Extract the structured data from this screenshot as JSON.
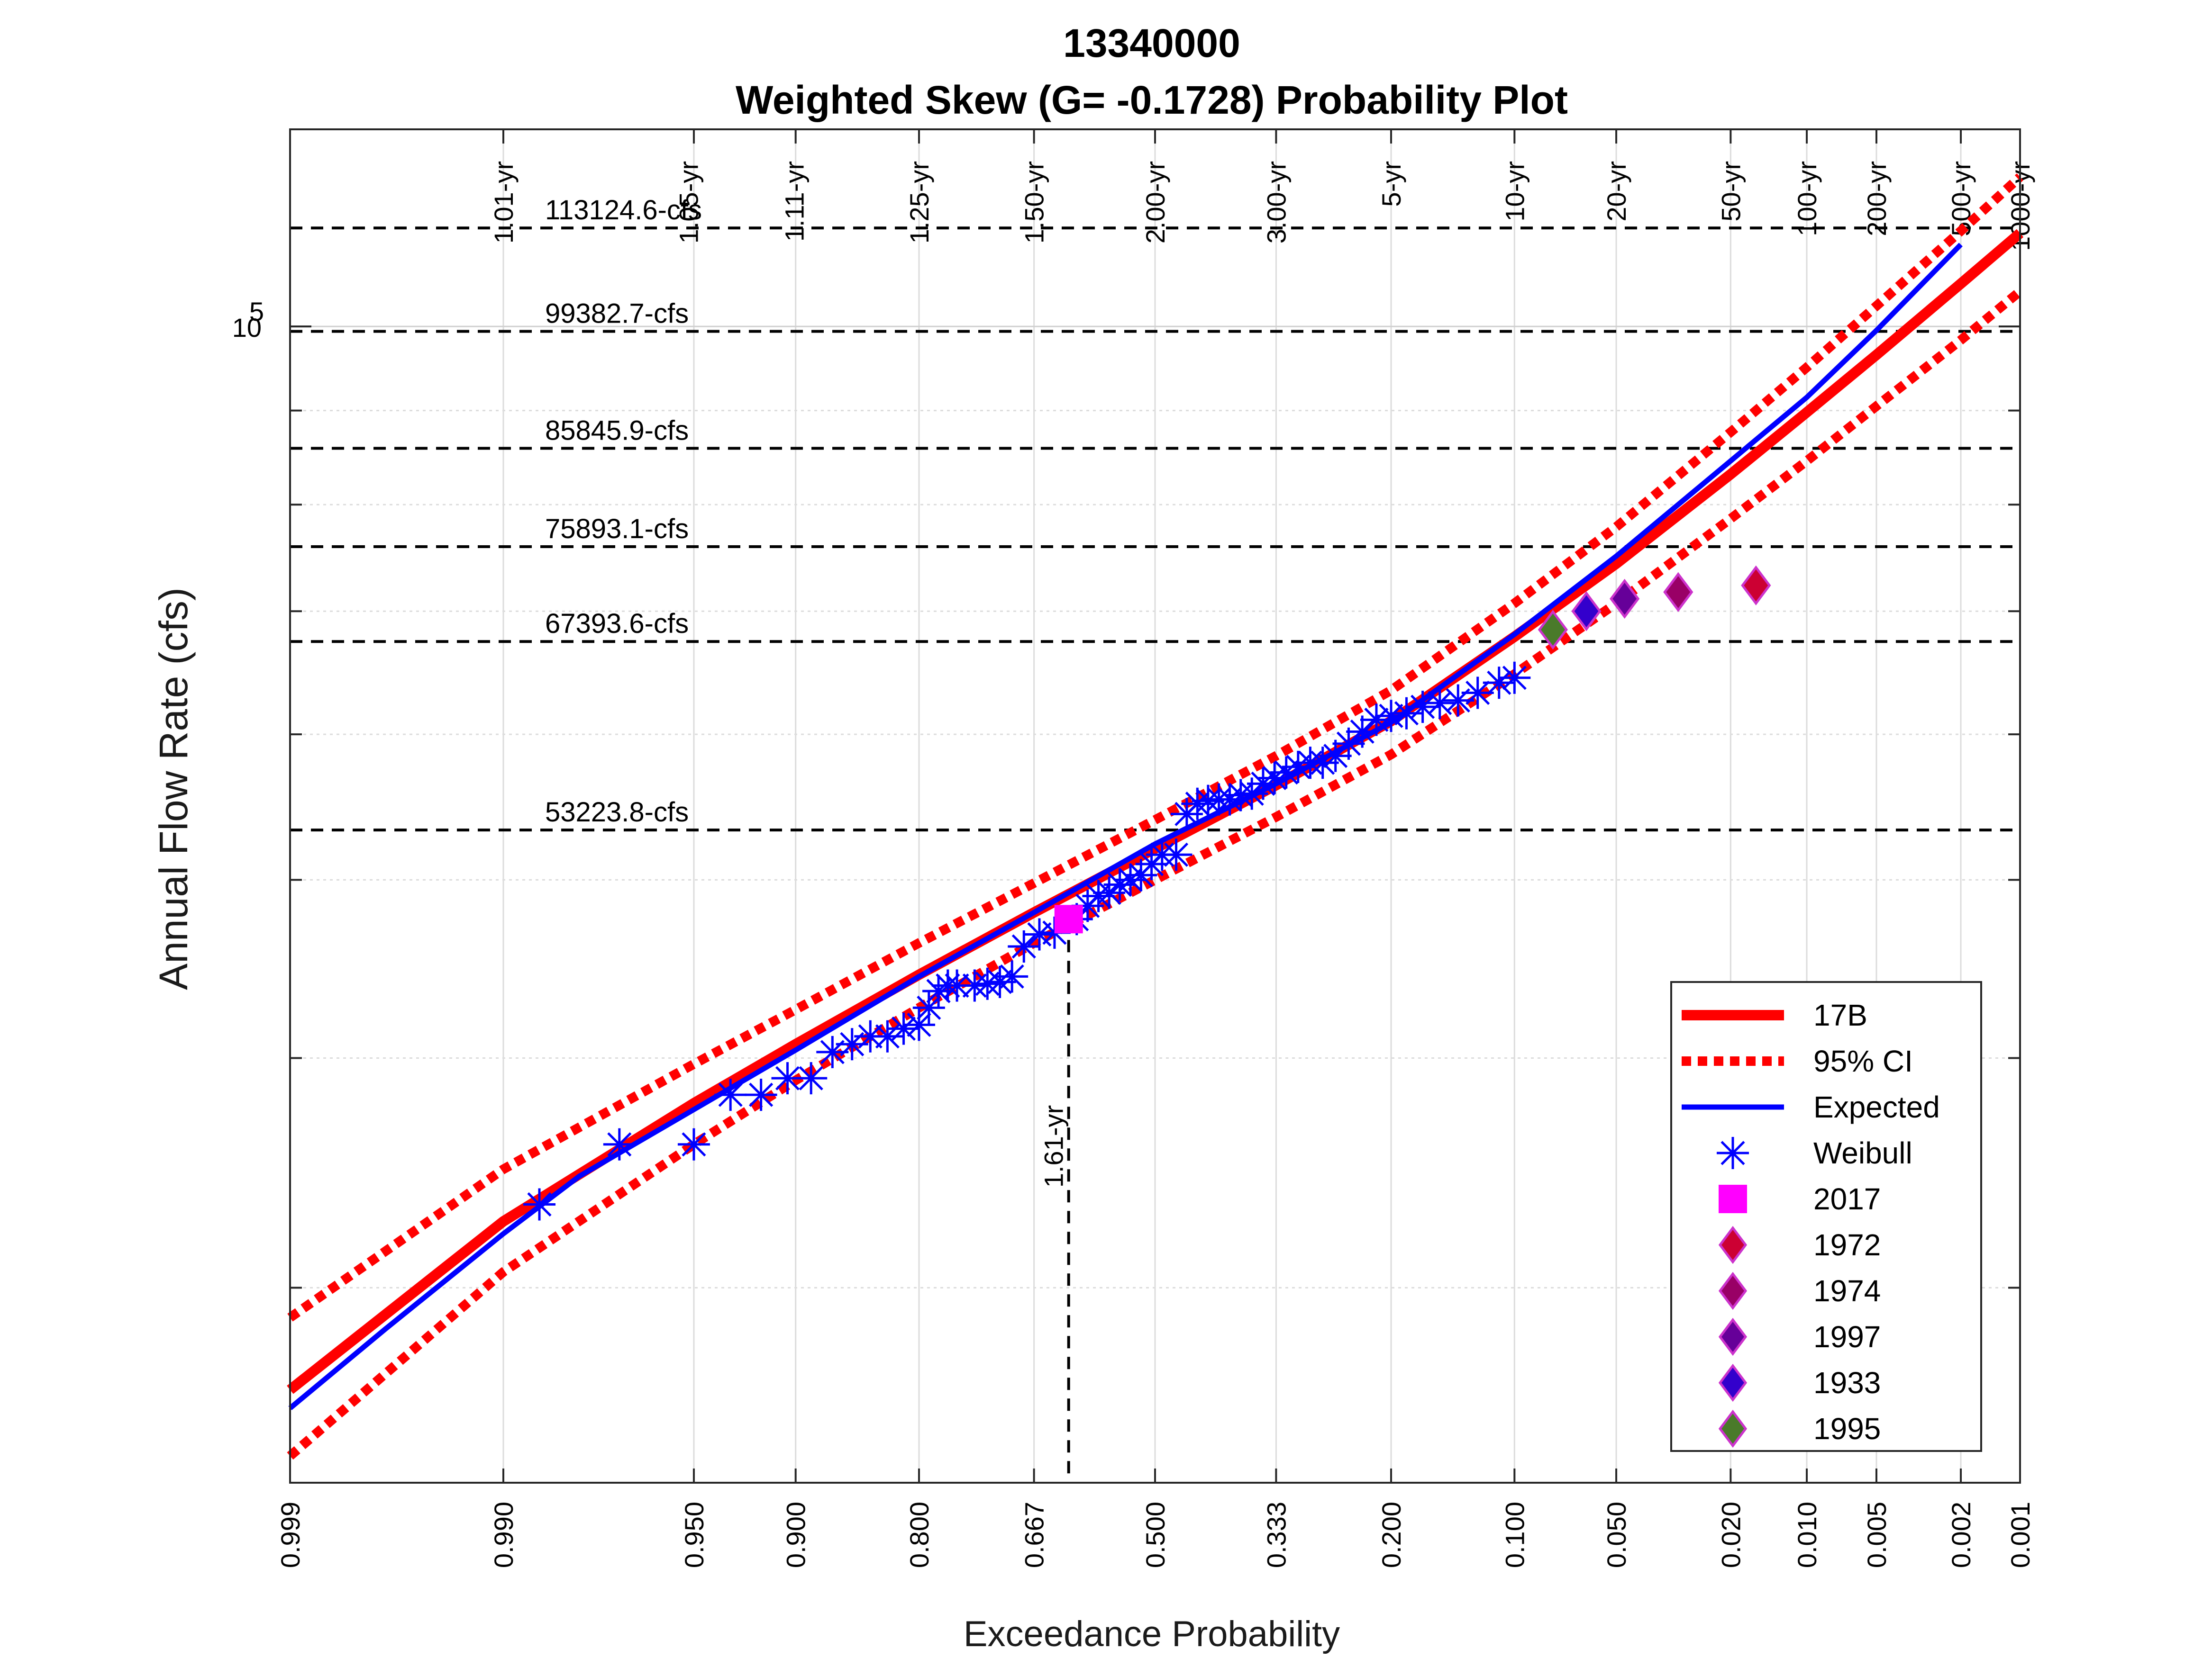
{
  "title_line1": "13340000",
  "title_line2": "Weighted Skew (G= -0.1728) Probability Plot",
  "colors": {
    "fit": "#ff0000",
    "ci": "#ff0000",
    "expected": "#0000ff",
    "weibull": "#0000ff",
    "peak_2017": "#ff00ff",
    "peak_1972": "#cc0033",
    "peak_1974": "#990066",
    "peak_1997": "#660099",
    "peak_1933": "#3300cc",
    "peak_1995": "#4a7a2a"
  },
  "chart_data": {
    "type": "line",
    "title": "13340000\nWeighted Skew (G= -0.1728) Probability Plot",
    "xlabel": "Exceedance Probability",
    "ylabel": "Annual Flow Rate (cfs)",
    "x_scale": "normal-probability (reversed)",
    "y_scale": "log",
    "xlim": [
      0.999,
      0.001
    ],
    "ylim": [
      23500,
      128000
    ],
    "x_ticks": [
      "0.999",
      "0.990",
      "0.950",
      "0.900",
      "0.800",
      "0.667",
      "0.500",
      "0.333",
      "0.200",
      "0.100",
      "0.050",
      "0.020",
      "0.010",
      "0.005",
      "0.002",
      "0.001"
    ],
    "x_tick_values": [
      0.999,
      0.99,
      0.95,
      0.9,
      0.8,
      0.667,
      0.5,
      0.333,
      0.2,
      0.1,
      0.05,
      0.02,
      0.01,
      0.005,
      0.002,
      0.001
    ],
    "y_tick_label": "10",
    "y_tick_exponent": "5",
    "y_minor_ticks": [
      30000,
      40000,
      50000,
      60000,
      70000,
      80000,
      90000
    ],
    "grid": true,
    "return_period_labels": [
      {
        "p": 0.99,
        "label": "1.01-yr"
      },
      {
        "p": 0.952,
        "label": "1.05-yr"
      },
      {
        "p": 0.901,
        "label": "1.11-yr"
      },
      {
        "p": 0.8,
        "label": "1.25-yr"
      },
      {
        "p": 0.667,
        "label": "1.50-yr"
      },
      {
        "p": 0.5,
        "label": "2.00-yr"
      },
      {
        "p": 0.333,
        "label": "3.00-yr"
      },
      {
        "p": 0.2,
        "label": "5-yr"
      },
      {
        "p": 0.1,
        "label": "10-yr"
      },
      {
        "p": 0.05,
        "label": "20-yr"
      },
      {
        "p": 0.02,
        "label": "50-yr"
      },
      {
        "p": 0.01,
        "label": "100-yr"
      },
      {
        "p": 0.005,
        "label": "200-yr"
      },
      {
        "p": 0.002,
        "label": "500-yr"
      },
      {
        "p": 0.001,
        "label": "1000-yr"
      }
    ],
    "flow_lines": [
      {
        "value": 113124.6,
        "label": "113124.6-cfs"
      },
      {
        "value": 99382.7,
        "label": "99382.7-cfs"
      },
      {
        "value": 85845.9,
        "label": "85845.9-cfs"
      },
      {
        "value": 75893.1,
        "label": "75893.1-cfs"
      },
      {
        "value": 67393.6,
        "label": "67393.6-cfs"
      },
      {
        "value": 53223.8,
        "label": "53223.8-cfs"
      }
    ],
    "vertical_marker": {
      "p": 0.621,
      "label": "1.61-yr"
    },
    "series": [
      {
        "name": "17B",
        "style": "solid-thick",
        "points": [
          [
            0.999,
            26400
          ],
          [
            0.99,
            32600
          ],
          [
            0.95,
            37800
          ],
          [
            0.9,
            40700
          ],
          [
            0.8,
            44400
          ],
          [
            0.667,
            48000
          ],
          [
            0.5,
            52000
          ],
          [
            0.333,
            56300
          ],
          [
            0.2,
            61000
          ],
          [
            0.1,
            67800
          ],
          [
            0.05,
            74300
          ],
          [
            0.02,
            83100
          ],
          [
            0.01,
            89800
          ],
          [
            0.005,
            96500
          ],
          [
            0.002,
            105500
          ],
          [
            0.001,
            112400
          ]
        ]
      },
      {
        "name": "95% CI",
        "style": "dotted",
        "points": [
          [
            0.999,
            28900
          ],
          [
            0.99,
            34800
          ],
          [
            0.95,
            39700
          ],
          [
            0.9,
            42500
          ],
          [
            0.8,
            46200
          ],
          [
            0.667,
            49800
          ],
          [
            0.5,
            53900
          ],
          [
            0.333,
            58400
          ],
          [
            0.2,
            63400
          ],
          [
            0.1,
            70700
          ],
          [
            0.05,
            77800
          ],
          [
            0.02,
            87600
          ],
          [
            0.01,
            95000
          ],
          [
            0.005,
            102600
          ],
          [
            0.002,
            112700
          ],
          [
            0.001,
            120600
          ]
        ]
      },
      {
        "name": "",
        "style": "dotted",
        "points": [
          [
            0.999,
            24300
          ],
          [
            0.99,
            30600
          ],
          [
            0.95,
            35900
          ],
          [
            0.9,
            38900
          ],
          [
            0.8,
            42600
          ],
          [
            0.667,
            46200
          ],
          [
            0.5,
            50000
          ],
          [
            0.333,
            54100
          ],
          [
            0.2,
            58500
          ],
          [
            0.1,
            64700
          ],
          [
            0.05,
            70700
          ],
          [
            0.02,
            78600
          ],
          [
            0.01,
            84500
          ],
          [
            0.005,
            90500
          ],
          [
            0.002,
            98300
          ],
          [
            0.001,
            104500
          ]
        ]
      },
      {
        "name": "Expected",
        "style": "solid",
        "points": [
          [
            0.999,
            25800
          ],
          [
            0.997,
            28500
          ],
          [
            0.99,
            32100
          ],
          [
            0.98,
            34500
          ],
          [
            0.95,
            37500
          ],
          [
            0.9,
            40400
          ],
          [
            0.8,
            44300
          ],
          [
            0.667,
            48000
          ],
          [
            0.5,
            52300
          ],
          [
            0.333,
            56400
          ],
          [
            0.2,
            60900
          ],
          [
            0.1,
            68000
          ],
          [
            0.05,
            75000
          ],
          [
            0.02,
            84500
          ],
          [
            0.01,
            91500
          ],
          [
            0.005,
            99500
          ],
          [
            0.002,
            110800
          ]
        ]
      }
    ],
    "weibull": {
      "name": "Weibull",
      "points": [
        [
          0.986,
          33300
        ],
        [
          0.972,
          35900
        ],
        [
          0.95,
          35900
        ],
        [
          0.935,
          38200
        ],
        [
          0.92,
          38200
        ],
        [
          0.905,
          39000
        ],
        [
          0.89,
          39000
        ],
        [
          0.875,
          40300
        ],
        [
          0.86,
          40700
        ],
        [
          0.845,
          41100
        ],
        [
          0.83,
          41100
        ],
        [
          0.815,
          41500
        ],
        [
          0.8,
          41700
        ],
        [
          0.79,
          42600
        ],
        [
          0.78,
          43500
        ],
        [
          0.77,
          43800
        ],
        [
          0.76,
          43800
        ],
        [
          0.74,
          43800
        ],
        [
          0.725,
          43900
        ],
        [
          0.71,
          44000
        ],
        [
          0.695,
          44300
        ],
        [
          0.68,
          46000
        ],
        [
          0.66,
          46700
        ],
        [
          0.64,
          46800
        ],
        [
          0.61,
          47600
        ],
        [
          0.595,
          48400
        ],
        [
          0.58,
          49000
        ],
        [
          0.565,
          49200
        ],
        [
          0.55,
          49700
        ],
        [
          0.535,
          50000
        ],
        [
          0.52,
          50300
        ],
        [
          0.505,
          51000
        ],
        [
          0.49,
          51600
        ],
        [
          0.47,
          51600
        ],
        [
          0.455,
          54300
        ],
        [
          0.44,
          55000
        ],
        [
          0.425,
          55200
        ],
        [
          0.41,
          55300
        ],
        [
          0.395,
          55300
        ],
        [
          0.38,
          55600
        ],
        [
          0.365,
          55700
        ],
        [
          0.35,
          56400
        ],
        [
          0.335,
          56800
        ],
        [
          0.32,
          57200
        ],
        [
          0.305,
          57600
        ],
        [
          0.29,
          57900
        ],
        [
          0.275,
          57900
        ],
        [
          0.26,
          58400
        ],
        [
          0.245,
          59300
        ],
        [
          0.23,
          60200
        ],
        [
          0.215,
          61100
        ],
        [
          0.2,
          61400
        ],
        [
          0.185,
          61600
        ],
        [
          0.17,
          62100
        ],
        [
          0.155,
          62400
        ],
        [
          0.14,
          62600
        ],
        [
          0.125,
          63200
        ],
        [
          0.11,
          64000
        ],
        [
          0.1,
          64400
        ]
      ]
    },
    "annual_peaks": [
      {
        "name": "2017",
        "marker": "square",
        "p": 0.621,
        "value": 47600
      },
      {
        "name": "1972",
        "marker": "diamond",
        "p": 0.016,
        "value": 72300
      },
      {
        "name": "1974",
        "marker": "diamond",
        "p": 0.031,
        "value": 71700
      },
      {
        "name": "1997",
        "marker": "diamond",
        "p": 0.047,
        "value": 71100
      },
      {
        "name": "1933",
        "marker": "diamond",
        "p": 0.062,
        "value": 70000
      },
      {
        "name": "1995",
        "marker": "diamond",
        "p": 0.078,
        "value": 68400
      }
    ],
    "legend_placement": "bottom-right"
  }
}
